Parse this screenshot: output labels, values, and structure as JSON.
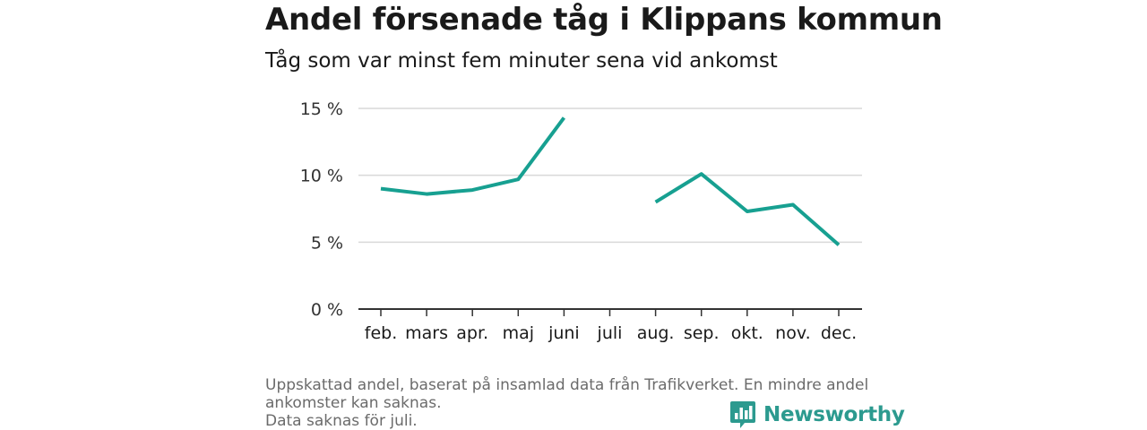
{
  "title": "Andel försenade tåg i Klippans kommun",
  "subtitle": "Tåg som var minst fem minuter sena vid ankomst",
  "footnote": {
    "line1": "Uppskattad andel, baserat på insamlad data från Trafikverket. En mindre andel",
    "line2": "ankomster kan saknas.",
    "line3": "Data saknas för juli."
  },
  "brand": {
    "name": "Newsworthy",
    "color": "#2c9a8f",
    "icon": "bar-chart-bubble-icon"
  },
  "colors": {
    "line": "#17a091",
    "grid": "#d9d9d9",
    "axis": "#333333"
  },
  "chart_data": {
    "type": "line",
    "title": "Andel försenade tåg i Klippans kommun",
    "categories": [
      "feb.",
      "mars",
      "apr.",
      "maj",
      "juni",
      "juli",
      "aug.",
      "sep.",
      "okt.",
      "nov.",
      "dec."
    ],
    "series": [
      {
        "values": [
          9.0,
          8.6,
          8.9,
          9.7,
          14.3,
          null,
          8.0,
          10.1,
          7.3,
          7.8,
          4.8
        ]
      }
    ],
    "ylim": [
      0,
      15
    ],
    "yticks": [
      0,
      5,
      10,
      15
    ],
    "ytick_labels": [
      "0 %",
      "5 %",
      "10 %",
      "15 %"
    ],
    "grid": true,
    "legend": "none"
  }
}
